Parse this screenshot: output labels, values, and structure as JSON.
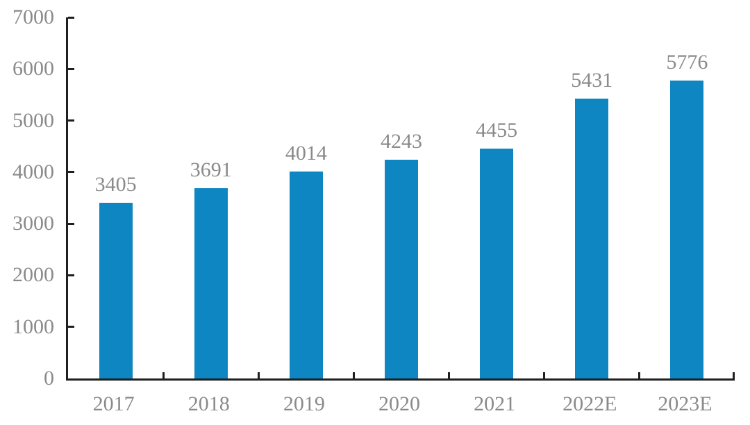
{
  "chart_data": {
    "type": "bar",
    "categories": [
      "2017",
      "2018",
      "2019",
      "2020",
      "2021",
      "2022E",
      "2023E"
    ],
    "values": [
      3405,
      3691,
      4014,
      4243,
      4455,
      5431,
      5776
    ],
    "title": "",
    "xlabel": "",
    "ylabel": "",
    "ylim": [
      0,
      7000
    ],
    "ytick_step": 1000,
    "yticks": [
      0,
      1000,
      2000,
      3000,
      4000,
      5000,
      6000,
      7000
    ],
    "grid": false,
    "legend": "none",
    "show_value_labels": true,
    "bar_color": "#0e86c1",
    "text_color": "#8a8a8a",
    "axis_color": "#1f1f1f"
  }
}
